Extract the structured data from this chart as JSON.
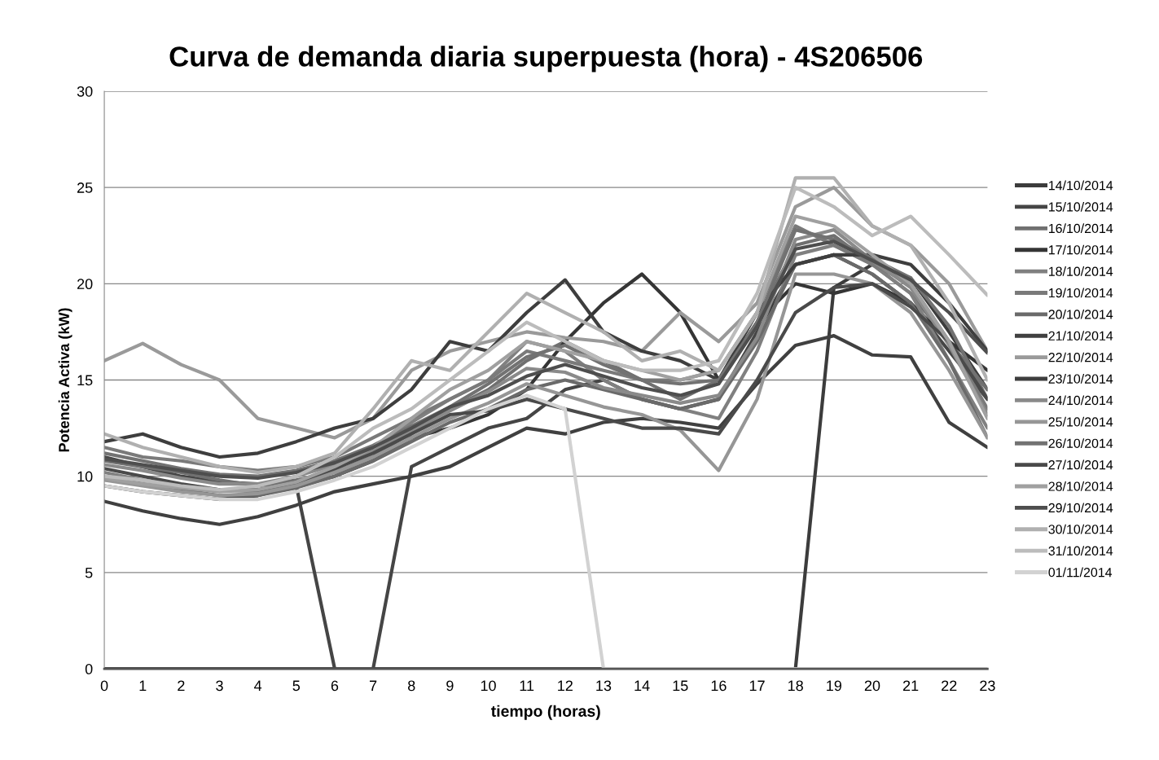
{
  "chart_data": {
    "type": "line",
    "title": "Curva de demanda diaria superpuesta (hora) - 4S206506",
    "xlabel": "tiempo (horas)",
    "ylabel": "Potencia Activa (kW)",
    "categories": [
      "0",
      "1",
      "2",
      "3",
      "4",
      "5",
      "6",
      "7",
      "8",
      "9",
      "10",
      "11",
      "12",
      "13",
      "14",
      "15",
      "16",
      "17",
      "18",
      "19",
      "20",
      "21",
      "22",
      "23"
    ],
    "ylim": [
      0,
      30
    ],
    "yticks": [
      0,
      5,
      10,
      15,
      20,
      25,
      30
    ],
    "grid": "y",
    "legend": "right",
    "marker": "none",
    "line_style": "solid",
    "series": [
      {
        "name": "14/10/2014",
        "color": "#3c3c3c",
        "values": [
          0,
          0,
          0,
          0,
          0,
          0,
          0,
          0,
          0,
          0,
          0,
          0,
          0,
          0,
          0,
          0,
          0,
          0,
          0,
          19.8,
          21,
          20.3,
          17.5,
          14.5
        ]
      },
      {
        "name": "15/10/2014",
        "color": "#454545",
        "values": [
          11,
          10.5,
          10,
          9.7,
          9.6,
          9.5,
          0,
          0,
          10.5,
          11.5,
          12.5,
          13,
          14.5,
          15,
          14,
          13.5,
          14,
          17.5,
          21,
          21.5,
          20.5,
          19,
          16.5,
          14
        ]
      },
      {
        "name": "16/10/2014",
        "color": "#707070",
        "values": [
          10.8,
          10.5,
          10.2,
          9.8,
          9.5,
          9.8,
          10.2,
          11,
          12.3,
          13.5,
          14.5,
          16,
          17,
          16,
          15,
          14,
          15,
          18,
          22,
          22.5,
          21,
          19.5,
          17,
          14.5
        ]
      },
      {
        "name": "17/10/2014",
        "color": "#353535",
        "values": [
          9.5,
          9.2,
          9,
          8.8,
          9,
          9.5,
          10,
          10.8,
          12,
          12.5,
          13.2,
          14.5,
          17,
          19,
          20.5,
          18.5,
          15,
          18,
          20,
          19.5,
          20,
          19,
          17,
          15.5
        ]
      },
      {
        "name": "18/10/2014",
        "color": "#808080",
        "values": [
          10.2,
          9.8,
          9.5,
          9.3,
          9.2,
          9.6,
          10.3,
          11.5,
          12.8,
          14,
          15,
          17,
          16.5,
          15,
          14,
          13.5,
          13,
          16.5,
          21.5,
          22,
          21,
          19.5,
          16,
          12.5
        ]
      },
      {
        "name": "19/10/2014",
        "color": "#7a7a7a",
        "values": [
          11.5,
          11,
          10.8,
          10.5,
          10.3,
          10.5,
          11,
          12,
          13,
          14,
          15,
          16.5,
          16,
          15.5,
          15,
          15,
          15.5,
          18.5,
          23,
          22,
          21,
          20,
          17,
          13.5
        ]
      },
      {
        "name": "20/10/2014",
        "color": "#6a6a6a",
        "values": [
          10,
          9.6,
          9.3,
          9,
          9,
          9.4,
          10,
          10.8,
          11.8,
          12.8,
          13.5,
          14.5,
          15,
          14.5,
          14,
          13.5,
          14,
          17,
          21,
          21.5,
          20.5,
          19,
          16,
          12
        ]
      },
      {
        "name": "21/10/2014",
        "color": "#404040",
        "values": [
          8.7,
          8.2,
          7.8,
          7.5,
          7.9,
          8.5,
          9.2,
          9.6,
          10,
          10.5,
          11.5,
          12.5,
          12.2,
          12.8,
          13,
          12.8,
          12.5,
          14.8,
          16.8,
          17.3,
          16.3,
          16.2,
          12.8,
          11.5
        ]
      },
      {
        "name": "22/10/2014",
        "color": "#9a9a9a",
        "values": [
          16,
          16.9,
          15.8,
          15,
          13,
          12.5,
          12,
          13,
          15.5,
          16.5,
          17,
          17.5,
          17.2,
          17,
          16.5,
          18.5,
          17,
          19,
          24,
          25,
          23,
          22,
          20,
          16.5
        ]
      },
      {
        "name": "23/10/2014",
        "color": "#3e3e3e",
        "values": [
          11.8,
          12.2,
          11.5,
          11,
          11.2,
          11.8,
          12.5,
          13,
          14.5,
          17,
          16.5,
          18.5,
          20.2,
          17.5,
          16.5,
          16,
          15,
          18.5,
          21,
          21.5,
          21.5,
          21,
          19,
          16.5
        ]
      },
      {
        "name": "24/10/2014",
        "color": "#8a8a8a",
        "values": [
          10.6,
          10.3,
          9.9,
          9.6,
          9.6,
          10,
          10.6,
          11.3,
          12.4,
          13.4,
          14.4,
          15.6,
          15.4,
          14.6,
          14.2,
          13.8,
          14.2,
          17.2,
          22.3,
          22.8,
          21.2,
          19.8,
          16.8,
          13.2
        ]
      },
      {
        "name": "25/10/2014",
        "color": "#969696",
        "values": [
          9.8,
          9.5,
          9.2,
          9,
          9.1,
          9.5,
          10.2,
          11,
          12,
          13,
          13.8,
          14.8,
          14.2,
          13.6,
          13.2,
          12.4,
          10.3,
          14,
          20.5,
          20.5,
          20,
          18.5,
          15.5,
          12
        ]
      },
      {
        "name": "26/10/2014",
        "color": "#727272",
        "values": [
          11.2,
          10.8,
          10.4,
          10.1,
          10,
          10.3,
          10.8,
          11.6,
          12.6,
          13.6,
          14.8,
          16.2,
          16.8,
          15.8,
          15,
          14.8,
          15,
          18,
          22.8,
          22.3,
          21.3,
          20.3,
          17.8,
          14
        ]
      },
      {
        "name": "27/10/2014",
        "color": "#4a4a4a",
        "values": [
          10.4,
          10,
          9.6,
          9.3,
          9.3,
          9.7,
          10.4,
          11.2,
          12.2,
          13.2,
          13.4,
          14,
          13.5,
          13,
          12.5,
          12.5,
          12.2,
          15,
          18.5,
          19.8,
          20,
          18.8,
          17,
          14
        ]
      },
      {
        "name": "28/10/2014",
        "color": "#a0a0a0",
        "values": [
          9.9,
          9.6,
          9.4,
          9.2,
          9.3,
          9.7,
          10.5,
          11.5,
          13,
          14.5,
          15.5,
          17,
          16.5,
          16,
          15.5,
          15,
          15.5,
          18.5,
          23.5,
          23,
          21.5,
          20,
          17,
          13
        ]
      },
      {
        "name": "29/10/2014",
        "color": "#4e4e4e",
        "values": [
          10.9,
          10.6,
          10.3,
          10,
          9.9,
          10.2,
          10.7,
          11.5,
          12.5,
          13.6,
          14.2,
          15.2,
          15.8,
          15.2,
          14.6,
          14.2,
          14.8,
          17.8,
          21.8,
          22.2,
          21.2,
          20.2,
          18.5,
          16.4
        ]
      },
      {
        "name": "30/10/2014",
        "color": "#b0b0b0",
        "values": [
          12.2,
          11.5,
          11,
          10.5,
          10.2,
          10.5,
          11.2,
          13.5,
          16,
          15.5,
          17.5,
          19.5,
          18.5,
          17.5,
          16,
          16.5,
          15.5,
          18.5,
          25.5,
          25.5,
          23,
          22,
          19,
          15
        ]
      },
      {
        "name": "31/10/2014",
        "color": "#bcbcbc",
        "values": [
          10,
          9.8,
          9.5,
          9.3,
          9.5,
          10,
          11,
          12.5,
          13.5,
          15,
          16.5,
          18,
          17,
          16,
          15.5,
          15.5,
          16,
          19.5,
          25,
          24,
          22.5,
          23.5,
          21.5,
          19.4
        ]
      },
      {
        "name": "01/11/2014",
        "color": "#d2d2d2",
        "values": [
          9.5,
          9.2,
          9,
          8.8,
          8.8,
          9.2,
          9.8,
          10.5,
          11.5,
          12.5,
          13.5,
          14.2,
          13.5,
          0,
          0,
          0,
          0,
          0,
          0,
          0,
          0,
          0,
          0,
          0
        ]
      }
    ]
  }
}
